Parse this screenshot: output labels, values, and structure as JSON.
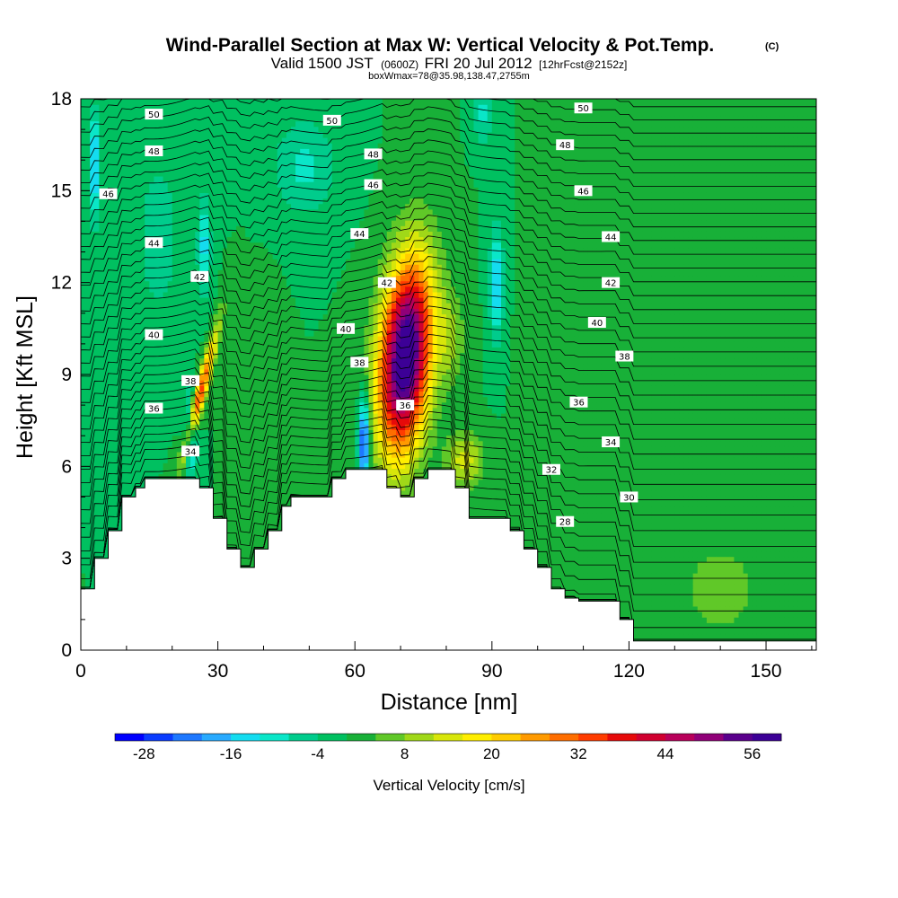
{
  "chart_data": {
    "type": "heatmap",
    "title": "Wind-Parallel Section at Max W: Vertical Velocity & Pot.Temp.",
    "title_mark": "(C)",
    "subtitle": {
      "valid": "Valid 1500 JST",
      "utc": "(0600Z)",
      "date": "FRI 20 Jul 2012",
      "fcst": "[12hrFcst@2152z]"
    },
    "subtitle2": "boxWmax=78@35.98,138.47,2755m",
    "xlabel": "Distance [nm]",
    "ylabel": "Height [Kft MSL]",
    "xlim": [
      0,
      161
    ],
    "ylim": [
      0,
      18
    ],
    "x_ticks": [
      "0",
      "30",
      "60",
      "90",
      "120",
      "150"
    ],
    "y_ticks": [
      "0",
      "3",
      "6",
      "9",
      "12",
      "15",
      "18"
    ],
    "colorbar": {
      "label": "Vertical Velocity [cm/s]",
      "min": -32,
      "max": 60,
      "step": 4,
      "tick_labels": [
        "-28",
        "-16",
        "-4",
        "8",
        "20",
        "32",
        "44",
        "56"
      ],
      "colors": [
        "#0000ff",
        "#0a3cff",
        "#1e78ff",
        "#28aaff",
        "#14dcf0",
        "#0ae6c8",
        "#00cc8c",
        "#00c060",
        "#18b038",
        "#60c828",
        "#a0d818",
        "#d8e60a",
        "#ffee00",
        "#ffcc00",
        "#ff9a00",
        "#ff6e00",
        "#ff3c00",
        "#e60a0a",
        "#d00030",
        "#b8005a",
        "#900078",
        "#5a008c",
        "#3c0096"
      ]
    },
    "terrain_kft": [
      [
        0,
        2.0
      ],
      [
        3,
        2.0
      ],
      [
        3,
        3.0
      ],
      [
        6,
        3.0
      ],
      [
        6,
        3.9
      ],
      [
        9,
        3.9
      ],
      [
        9,
        5.0
      ],
      [
        12,
        5.0
      ],
      [
        12,
        5.3
      ],
      [
        14,
        5.3
      ],
      [
        14,
        5.6
      ],
      [
        26,
        5.6
      ],
      [
        26,
        5.3
      ],
      [
        29,
        5.3
      ],
      [
        29,
        4.3
      ],
      [
        32,
        4.3
      ],
      [
        32,
        3.3
      ],
      [
        35,
        3.3
      ],
      [
        35,
        2.7
      ],
      [
        38,
        2.7
      ],
      [
        38,
        3.3
      ],
      [
        41,
        3.3
      ],
      [
        41,
        3.9
      ],
      [
        44,
        3.9
      ],
      [
        44,
        4.7
      ],
      [
        46,
        4.7
      ],
      [
        46,
        5.0
      ],
      [
        55,
        5.0
      ],
      [
        55,
        5.6
      ],
      [
        58,
        5.6
      ],
      [
        58,
        5.9
      ],
      [
        67,
        5.9
      ],
      [
        67,
        5.3
      ],
      [
        70,
        5.3
      ],
      [
        70,
        5.0
      ],
      [
        73,
        5.0
      ],
      [
        73,
        5.6
      ],
      [
        76,
        5.6
      ],
      [
        76,
        5.9
      ],
      [
        82,
        5.9
      ],
      [
        82,
        5.3
      ],
      [
        85,
        5.3
      ],
      [
        85,
        4.3
      ],
      [
        94,
        4.3
      ],
      [
        94,
        3.9
      ],
      [
        97,
        3.9
      ],
      [
        97,
        3.3
      ],
      [
        100,
        3.3
      ],
      [
        100,
        2.7
      ],
      [
        103,
        2.7
      ],
      [
        103,
        2.0
      ],
      [
        106,
        2.0
      ],
      [
        106,
        1.7
      ],
      [
        109,
        1.7
      ],
      [
        109,
        1.6
      ],
      [
        118,
        1.6
      ],
      [
        118,
        1.0
      ],
      [
        121,
        1.0
      ],
      [
        121,
        0.3
      ],
      [
        161,
        0.3
      ]
    ],
    "isentropes": [
      {
        "label": "28",
        "base": 3.95,
        "pos": [
          106,
          4.2
        ]
      },
      {
        "label": "30",
        "base": 4.75,
        "pos": [
          120,
          5.0
        ]
      },
      {
        "label": "32",
        "base": 5.55,
        "pos": [
          103,
          5.9
        ]
      },
      {
        "label": "34",
        "base": 6.35,
        "pos": [
          116,
          6.8
        ]
      },
      {
        "label": "34",
        "base": 6.35,
        "pos": [
          24,
          6.5
        ]
      },
      {
        "label": "36",
        "base": 7.15,
        "pos": [
          16,
          7.9
        ]
      },
      {
        "label": "36",
        "base": 7.15,
        "pos": [
          71,
          8.0
        ]
      },
      {
        "label": "36",
        "base": 7.15,
        "pos": [
          109,
          8.1
        ]
      },
      {
        "label": "38",
        "base": 7.95,
        "pos": [
          24,
          8.8
        ]
      },
      {
        "label": "38",
        "base": 7.95,
        "pos": [
          61,
          9.4
        ]
      },
      {
        "label": "38",
        "base": 7.95,
        "pos": [
          119,
          9.6
        ]
      },
      {
        "label": "40",
        "base": 8.75,
        "pos": [
          16,
          10.3
        ]
      },
      {
        "label": "40",
        "base": 8.75,
        "pos": [
          58,
          10.5
        ]
      },
      {
        "label": "40",
        "base": 8.75,
        "pos": [
          113,
          10.7
        ]
      },
      {
        "label": "42",
        "base": 9.55,
        "pos": [
          26,
          12.2
        ]
      },
      {
        "label": "42",
        "base": 9.55,
        "pos": [
          67,
          12.0
        ]
      },
      {
        "label": "42",
        "base": 9.55,
        "pos": [
          116,
          12.0
        ]
      },
      {
        "label": "44",
        "base": 10.35,
        "pos": [
          16,
          13.3
        ]
      },
      {
        "label": "44",
        "base": 10.35,
        "pos": [
          61,
          13.6
        ]
      },
      {
        "label": "44",
        "base": 10.35,
        "pos": [
          116,
          13.5
        ]
      },
      {
        "label": "46",
        "base": 11.15,
        "pos": [
          6,
          14.9
        ]
      },
      {
        "label": "46",
        "base": 11.15,
        "pos": [
          64,
          15.2
        ]
      },
      {
        "label": "46",
        "base": 11.15,
        "pos": [
          110,
          15.0
        ]
      },
      {
        "label": "48",
        "base": 11.95,
        "pos": [
          16,
          16.3
        ]
      },
      {
        "label": "48",
        "base": 11.95,
        "pos": [
          64,
          16.2
        ]
      },
      {
        "label": "48",
        "base": 11.95,
        "pos": [
          106,
          16.5
        ]
      },
      {
        "label": "50",
        "base": 12.75,
        "pos": [
          16,
          17.5
        ]
      },
      {
        "label": "50",
        "base": 12.75,
        "pos": [
          55,
          17.3
        ]
      },
      {
        "label": "50",
        "base": 12.75,
        "pos": [
          110,
          17.7
        ]
      }
    ],
    "w_features": [
      {
        "x": 71,
        "y": 9.6,
        "sx": 5.5,
        "sy": 3.1,
        "amp": 64,
        "tilt": 0.5
      },
      {
        "x": 26,
        "y": 8.3,
        "sx": 1.3,
        "sy": 2.1,
        "amp": 34,
        "tilt": 1.7
      },
      {
        "x": 84,
        "y": 6.2,
        "sx": 4.0,
        "sy": 0.9,
        "amp": 14,
        "tilt": 0
      },
      {
        "x": 62,
        "y": 6.8,
        "sx": 1.2,
        "sy": 1.5,
        "amp": -30,
        "tilt": 0
      },
      {
        "x": 24,
        "y": 7.0,
        "sx": 1.4,
        "sy": 1.3,
        "amp": -20,
        "tilt": 0
      },
      {
        "x": 27,
        "y": 13.2,
        "sx": 1.4,
        "sy": 1.6,
        "amp": -14,
        "tilt": 0
      },
      {
        "x": 91,
        "y": 12.0,
        "sx": 1.5,
        "sy": 1.8,
        "amp": -16,
        "tilt": 0
      },
      {
        "x": 3,
        "y": 15.8,
        "sx": 1.2,
        "sy": 1.8,
        "amp": -18,
        "tilt": 0
      },
      {
        "x": 49,
        "y": 15.8,
        "sx": 7.0,
        "sy": 1.6,
        "amp": -9,
        "tilt": 0
      },
      {
        "x": 17,
        "y": 13.5,
        "sx": 4.0,
        "sy": 2.5,
        "amp": -8,
        "tilt": 0
      },
      {
        "x": 88,
        "y": 17.5,
        "sx": 2.0,
        "sy": 1.0,
        "amp": -9,
        "tilt": 0
      },
      {
        "x": 81,
        "y": 10.2,
        "sx": 3.0,
        "sy": 1.5,
        "amp": 8,
        "tilt": 0
      },
      {
        "x": 140,
        "y": 2.0,
        "sx": 10,
        "sy": 1.8,
        "amp": 6,
        "tilt": 0
      },
      {
        "x": 126,
        "y": 15.5,
        "sx": 9,
        "sy": 3.5,
        "amp": 4,
        "tilt": 0
      },
      {
        "x": 150,
        "y": 10.0,
        "sx": 6,
        "sy": 3.0,
        "amp": 4,
        "tilt": 0
      },
      {
        "x": 104,
        "y": 9.0,
        "sx": 5,
        "sy": 3.0,
        "amp": 3,
        "tilt": 0
      },
      {
        "x": 40,
        "y": 8.0,
        "sx": 3,
        "sy": 3.0,
        "amp": 3,
        "tilt": 0
      }
    ],
    "w_background": 0,
    "grid": false
  }
}
